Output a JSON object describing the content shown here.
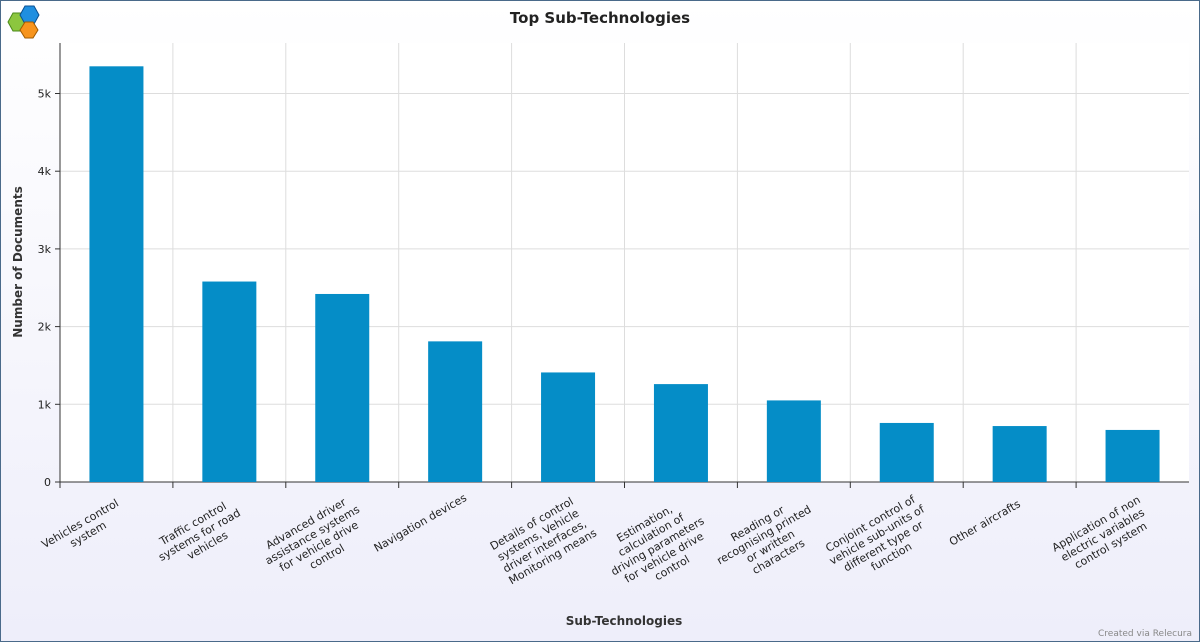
{
  "chart_data": {
    "type": "bar",
    "title": "Top Sub-Technologies",
    "x_label": "Sub-Technologies",
    "y_label": "Number of Documents",
    "footer": "Created via Relecura",
    "categories": [
      "Vehicles control system",
      "Traffic control systems for road vehicles",
      "Advanced driver assistance systems for vehicle drive control",
      "Navigation devices",
      "Details of control systems, Vehicle driver interfaces, Monitoring means",
      "Estimation, calculation of driving parameters for vehicle drive control",
      "Reading or recognising printed or written characters",
      "Conjoint control of vehicle sub-units of different type or function",
      "Other aircrafts",
      "Application of non electric variables control system"
    ],
    "values": [
      5350,
      2580,
      2420,
      1810,
      1410,
      1260,
      1050,
      760,
      720,
      670
    ],
    "color": "#058dc7",
    "ylim": [
      0,
      5650
    ],
    "yticks": [
      0,
      {
        "value": 1000,
        "label": "1k"
      },
      {
        "value": 2000,
        "label": "2k"
      },
      {
        "value": 3000,
        "label": "3k"
      },
      {
        "value": 4000,
        "label": "4k"
      },
      {
        "value": 5000,
        "label": "5k"
      }
    ],
    "grid": true
  }
}
